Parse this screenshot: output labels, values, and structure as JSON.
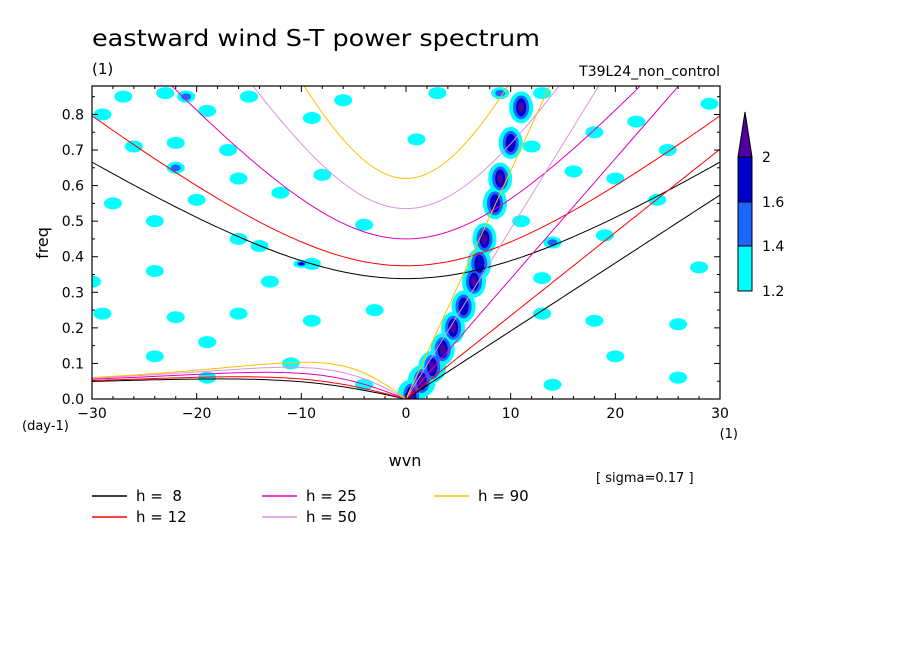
{
  "chart_data": {
    "type": "heatmap",
    "title": "eastward wind S-T power spectrum",
    "subtitle_left": "(1)",
    "subtitle_right": "T39L24_non_control",
    "xlabel": "wvn",
    "ylabel": "freq",
    "x_unit": "(1)",
    "y_unit": "(day-1)",
    "xlim": [
      -30,
      30
    ],
    "ylim": [
      0,
      0.88
    ],
    "x_ticks": [
      -30,
      -20,
      -10,
      0,
      10,
      20,
      30
    ],
    "y_ticks": [
      0.0,
      0.1,
      0.2,
      0.3,
      0.4,
      0.5,
      0.6,
      0.7,
      0.8
    ],
    "y_tick_labels": [
      "0.0",
      "0.1",
      "0.2",
      "0.3",
      "0.4",
      "0.5",
      "0.6",
      "0.7",
      "0.8"
    ],
    "annotation": "[ sigma=0.17 ]",
    "colorbar": {
      "levels": [
        1.2,
        1.4,
        1.6,
        2
      ],
      "level_labels": [
        "1.2",
        "1.4",
        "1.6",
        "2"
      ],
      "colors": [
        "#00ffff",
        "#1e64ff",
        "#0000c8",
        "#5000a0"
      ]
    },
    "dispersion_curves": [
      {
        "label": "h =  8",
        "h": 8,
        "color": "#000000"
      },
      {
        "label": "h = 12",
        "h": 12,
        "color": "#ff0000"
      },
      {
        "label": "h = 25",
        "h": 25,
        "color": "#e000c0"
      },
      {
        "label": "h = 50",
        "h": 50,
        "color": "#e090e0"
      },
      {
        "label": "h = 90",
        "h": 90,
        "color": "#ffc000"
      }
    ],
    "shaded_regions": [
      {
        "level": 1.2,
        "wvn": -27,
        "freq": 0.85
      },
      {
        "level": 1.2,
        "wvn": -23,
        "freq": 0.86
      },
      {
        "level": 1.4,
        "wvn": -21,
        "freq": 0.85
      },
      {
        "level": 1.2,
        "wvn": -19,
        "freq": 0.81
      },
      {
        "level": 1.2,
        "wvn": -15,
        "freq": 0.85
      },
      {
        "level": 1.2,
        "wvn": -6,
        "freq": 0.84
      },
      {
        "level": 1.2,
        "wvn": 3,
        "freq": 0.86
      },
      {
        "level": 1.4,
        "wvn": 9,
        "freq": 0.86
      },
      {
        "level": 1.2,
        "wvn": 13,
        "freq": 0.86
      },
      {
        "level": 1.2,
        "wvn": 29,
        "freq": 0.83
      },
      {
        "level": 1.2,
        "wvn": -29,
        "freq": 0.8
      },
      {
        "level": 1.2,
        "wvn": -26,
        "freq": 0.71
      },
      {
        "level": 1.2,
        "wvn": -22,
        "freq": 0.72
      },
      {
        "level": 1.2,
        "wvn": -17,
        "freq": 0.7
      },
      {
        "level": 1.2,
        "wvn": -9,
        "freq": 0.79
      },
      {
        "level": 1.2,
        "wvn": 1,
        "freq": 0.73
      },
      {
        "level": 1.2,
        "wvn": 12,
        "freq": 0.71
      },
      {
        "level": 1.2,
        "wvn": 18,
        "freq": 0.75
      },
      {
        "level": 1.2,
        "wvn": 22,
        "freq": 0.78
      },
      {
        "level": 1.2,
        "wvn": 25,
        "freq": 0.7
      },
      {
        "level": 1.4,
        "wvn": -22,
        "freq": 0.65
      },
      {
        "level": 1.2,
        "wvn": -16,
        "freq": 0.62
      },
      {
        "level": 1.2,
        "wvn": -8,
        "freq": 0.63
      },
      {
        "level": 1.2,
        "wvn": 16,
        "freq": 0.64
      },
      {
        "level": 1.2,
        "wvn": 20,
        "freq": 0.62
      },
      {
        "level": 1.2,
        "wvn": -28,
        "freq": 0.55
      },
      {
        "level": 1.2,
        "wvn": -20,
        "freq": 0.56
      },
      {
        "level": 1.2,
        "wvn": -12,
        "freq": 0.58
      },
      {
        "level": 1.2,
        "wvn": 24,
        "freq": 0.56
      },
      {
        "level": 1.2,
        "wvn": -24,
        "freq": 0.5
      },
      {
        "level": 1.2,
        "wvn": -14,
        "freq": 0.43
      },
      {
        "level": 1.2,
        "wvn": -16,
        "freq": 0.45
      },
      {
        "level": 1.2,
        "wvn": -4,
        "freq": 0.49
      },
      {
        "level": 1.2,
        "wvn": 11,
        "freq": 0.5
      },
      {
        "level": 1.4,
        "wvn": 14,
        "freq": 0.44
      },
      {
        "level": 1.2,
        "wvn": 19,
        "freq": 0.46
      },
      {
        "level": 1.2,
        "wvn": -9,
        "freq": 0.38
      },
      {
        "level": 1.6,
        "wvn": -10,
        "freq": 0.38
      },
      {
        "level": 1.2,
        "wvn": -24,
        "freq": 0.36
      },
      {
        "level": 1.2,
        "wvn": -30,
        "freq": 0.33
      },
      {
        "level": 1.2,
        "wvn": -13,
        "freq": 0.33
      },
      {
        "level": 1.2,
        "wvn": 13,
        "freq": 0.34
      },
      {
        "level": 1.2,
        "wvn": 28,
        "freq": 0.37
      },
      {
        "level": 1.2,
        "wvn": -29,
        "freq": 0.24
      },
      {
        "level": 1.2,
        "wvn": -22,
        "freq": 0.23
      },
      {
        "level": 1.2,
        "wvn": -16,
        "freq": 0.24
      },
      {
        "level": 1.2,
        "wvn": -9,
        "freq": 0.22
      },
      {
        "level": 1.2,
        "wvn": -3,
        "freq": 0.25
      },
      {
        "level": 1.2,
        "wvn": 13,
        "freq": 0.24
      },
      {
        "level": 1.2,
        "wvn": 18,
        "freq": 0.22
      },
      {
        "level": 1.2,
        "wvn": 26,
        "freq": 0.21
      },
      {
        "level": 1.2,
        "wvn": -19,
        "freq": 0.16
      },
      {
        "level": 1.2,
        "wvn": -11,
        "freq": 0.1
      },
      {
        "level": 1.2,
        "wvn": -24,
        "freq": 0.12
      },
      {
        "level": 1.2,
        "wvn": 20,
        "freq": 0.12
      },
      {
        "level": 1.2,
        "wvn": 26,
        "freq": 0.06
      },
      {
        "level": 1.2,
        "wvn": 14,
        "freq": 0.04
      },
      {
        "level": 1.2,
        "wvn": -19,
        "freq": 0.06
      },
      {
        "level": 1.2,
        "wvn": -4,
        "freq": 0.04
      }
    ],
    "kelvin_band": {
      "level": 2,
      "points": [
        [
          0.5,
          0.01
        ],
        [
          1.5,
          0.05
        ],
        [
          2.5,
          0.09
        ],
        [
          3.5,
          0.14
        ],
        [
          4.5,
          0.2
        ],
        [
          5.5,
          0.26
        ],
        [
          6.5,
          0.33
        ],
        [
          7.0,
          0.38
        ],
        [
          7.5,
          0.45
        ],
        [
          8.5,
          0.55
        ],
        [
          9.0,
          0.62
        ],
        [
          10.0,
          0.72
        ],
        [
          11.0,
          0.82
        ]
      ]
    }
  }
}
